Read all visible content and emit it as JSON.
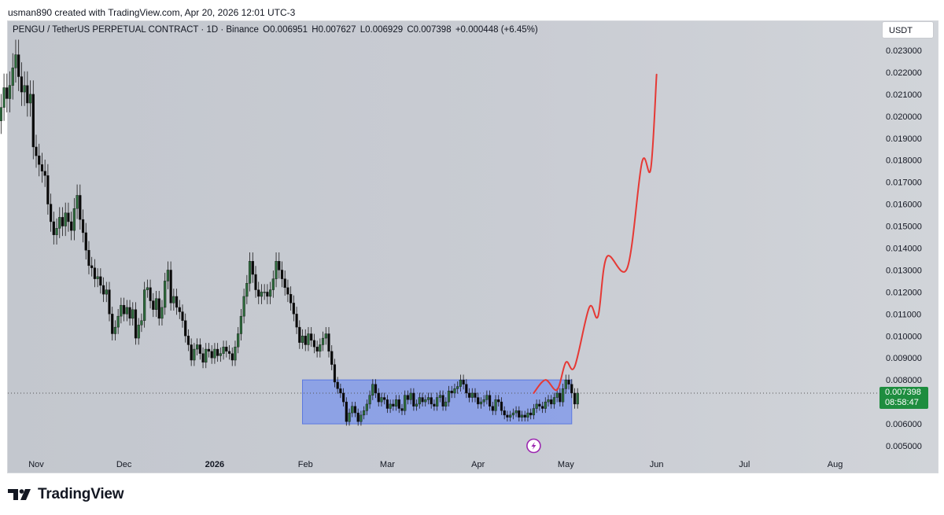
{
  "caption": "usman890 created with TradingView.com, Apr 20, 2026 12:01 UTC-3",
  "symbol": {
    "name": "PENGU / TetherUS PERPETUAL CONTRACT · 1D · Binance",
    "open": "O0.006951",
    "high": "H0.007627",
    "low": "L0.006929",
    "close": "C0.007398",
    "change": "+0.000448 (+6.45%)"
  },
  "currency_button": "USDT",
  "price_tag": {
    "price": "0.007398",
    "countdown": "08:58:47"
  },
  "footer": {
    "brand": "TradingView"
  },
  "colors": {
    "up": "#2d6b3c",
    "down": "#0a0a0a",
    "projection": "#e53935",
    "range_box": "#6e8cf0",
    "price_tag": "#1e8d3f",
    "marker": "#9c27b0"
  },
  "chart_data": {
    "type": "candlestick",
    "timeframe": "1D",
    "ylim": [
      0.0045,
      0.0235
    ],
    "y_ticks": [
      "0.023000",
      "0.022000",
      "0.021000",
      "0.020000",
      "0.019000",
      "0.018000",
      "0.017000",
      "0.016000",
      "0.015000",
      "0.014000",
      "0.013000",
      "0.012000",
      "0.011000",
      "0.010000",
      "0.009000",
      "0.008000",
      "0.006000",
      "0.005000"
    ],
    "x_ticks": [
      {
        "label": "Nov",
        "date": "2025-11-01"
      },
      {
        "label": "Dec",
        "date": "2025-12-01"
      },
      {
        "label": "2026",
        "date": "2026-01-01",
        "bold": true
      },
      {
        "label": "Feb",
        "date": "2026-02-01"
      },
      {
        "label": "Mar",
        "date": "2026-03-01"
      },
      {
        "label": "Apr",
        "date": "2026-04-01"
      },
      {
        "label": "May",
        "date": "2026-05-01"
      },
      {
        "label": "Jun",
        "date": "2026-06-01"
      },
      {
        "label": "Jul",
        "date": "2026-07-01"
      },
      {
        "label": "Aug",
        "date": "2026-08-01"
      }
    ],
    "first_candle_date": "2025-10-20",
    "last_price": 0.007398,
    "candles_close": [
      0.0204,
      0.0213,
      0.0208,
      0.0214,
      0.0222,
      0.0228,
      0.0218,
      0.0211,
      0.0214,
      0.0206,
      0.021,
      0.0186,
      0.0182,
      0.0178,
      0.0175,
      0.0173,
      0.016,
      0.0152,
      0.0146,
      0.0149,
      0.0154,
      0.015,
      0.0156,
      0.0152,
      0.0148,
      0.0158,
      0.0164,
      0.0153,
      0.0147,
      0.0139,
      0.0132,
      0.0131,
      0.0126,
      0.0127,
      0.0123,
      0.0119,
      0.0121,
      0.011,
      0.0101,
      0.0104,
      0.0109,
      0.0114,
      0.011,
      0.0113,
      0.0108,
      0.0112,
      0.0099,
      0.0105,
      0.0107,
      0.0121,
      0.0122,
      0.0116,
      0.0112,
      0.0117,
      0.0108,
      0.0113,
      0.0125,
      0.013,
      0.0115,
      0.0118,
      0.0113,
      0.0111,
      0.0107,
      0.01,
      0.0096,
      0.0089,
      0.0094,
      0.0096,
      0.0092,
      0.0088,
      0.0094,
      0.0093,
      0.009,
      0.0094,
      0.0091,
      0.0092,
      0.0095,
      0.0093,
      0.0092,
      0.0089,
      0.0095,
      0.0101,
      0.0109,
      0.0118,
      0.0124,
      0.0134,
      0.0128,
      0.0121,
      0.0118,
      0.012,
      0.012,
      0.0118,
      0.0121,
      0.0126,
      0.0134,
      0.013,
      0.0126,
      0.0122,
      0.0119,
      0.0115,
      0.011,
      0.0104,
      0.0097,
      0.01,
      0.0096,
      0.0101,
      0.0098,
      0.0095,
      0.0093,
      0.0096,
      0.0099,
      0.0101,
      0.0093,
      0.0087,
      0.0079,
      0.0076,
      0.0074,
      0.007,
      0.0061,
      0.0065,
      0.0068,
      0.0065,
      0.0061,
      0.0064,
      0.0066,
      0.0069,
      0.0073,
      0.0078,
      0.0074,
      0.007,
      0.0072,
      0.0071,
      0.0067,
      0.0069,
      0.0068,
      0.0071,
      0.0067,
      0.0066,
      0.0073,
      0.0071,
      0.0074,
      0.0068,
      0.0069,
      0.0072,
      0.007,
      0.0071,
      0.0072,
      0.0069,
      0.0068,
      0.0072,
      0.0073,
      0.0068,
      0.007,
      0.0075,
      0.0074,
      0.0076,
      0.0077,
      0.008,
      0.0078,
      0.0074,
      0.0072,
      0.0074,
      0.0072,
      0.0069,
      0.007,
      0.0071,
      0.0073,
      0.0068,
      0.0066,
      0.0071,
      0.007,
      0.0066,
      0.0064,
      0.0063,
      0.0064,
      0.0065,
      0.0066,
      0.0063,
      0.0064,
      0.0063,
      0.0065,
      0.0064,
      0.0067,
      0.0069,
      0.0068,
      0.0067,
      0.007,
      0.0071,
      0.0069,
      0.0072,
      0.0074,
      0.007,
      0.0076,
      0.008,
      0.0078,
      0.0074,
      0.0069,
      0.0074
    ],
    "range_box": {
      "start": "2026-01-31",
      "end": "2026-05-03",
      "top": 0.008,
      "bottom": 0.006
    },
    "projection": [
      {
        "date": "2026-04-20",
        "y": 0.0074
      },
      {
        "date": "2026-04-24",
        "y": 0.008
      },
      {
        "date": "2026-04-28",
        "y": 0.00755
      },
      {
        "date": "2026-05-01",
        "y": 0.0088
      },
      {
        "date": "2026-05-04",
        "y": 0.0086
      },
      {
        "date": "2026-05-09",
        "y": 0.0113
      },
      {
        "date": "2026-05-12",
        "y": 0.0109
      },
      {
        "date": "2026-05-15",
        "y": 0.0136
      },
      {
        "date": "2026-05-22",
        "y": 0.0131
      },
      {
        "date": "2026-05-27",
        "y": 0.0179
      },
      {
        "date": "2026-05-30",
        "y": 0.0176
      },
      {
        "date": "2026-06-01",
        "y": 0.0219
      }
    ],
    "marker_date": "2026-04-20"
  }
}
